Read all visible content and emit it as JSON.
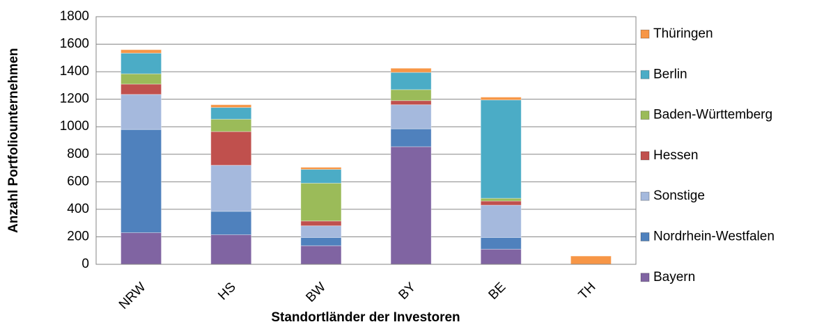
{
  "chart_data": {
    "type": "stacked_bar",
    "x_label": "Standortländer der Investoren",
    "y_label": "Anzahl Portfoliounternehmen",
    "categories": [
      "NRW",
      "HS",
      "BW",
      "BY",
      "BE",
      "TH"
    ],
    "series": [
      {
        "name": "Bayern",
        "color": "#8064a2",
        "values": [
          230,
          215,
          135,
          855,
          110,
          0
        ]
      },
      {
        "name": "Nordrhein-Westfalen",
        "color": "#4f81bd",
        "values": [
          750,
          170,
          60,
          130,
          85,
          0
        ]
      },
      {
        "name": "Sonstige",
        "color": "#a5b9dd",
        "values": [
          255,
          335,
          85,
          175,
          235,
          0
        ]
      },
      {
        "name": "Hessen",
        "color": "#c0504d",
        "values": [
          75,
          245,
          35,
          30,
          30,
          0
        ]
      },
      {
        "name": "Baden-Württemberg",
        "color": "#9bbb59",
        "values": [
          75,
          90,
          275,
          80,
          20,
          0
        ]
      },
      {
        "name": "Berlin",
        "color": "#4bacc6",
        "values": [
          150,
          85,
          100,
          125,
          715,
          0
        ]
      },
      {
        "name": "Thüringen",
        "color": "#f79646",
        "values": [
          25,
          20,
          15,
          30,
          20,
          60
        ]
      }
    ],
    "ylim": [
      0,
      1800
    ],
    "yticks": [
      0,
      200,
      400,
      600,
      800,
      1000,
      1200,
      1400,
      1600,
      1800
    ],
    "grid": true,
    "legend": "right"
  }
}
